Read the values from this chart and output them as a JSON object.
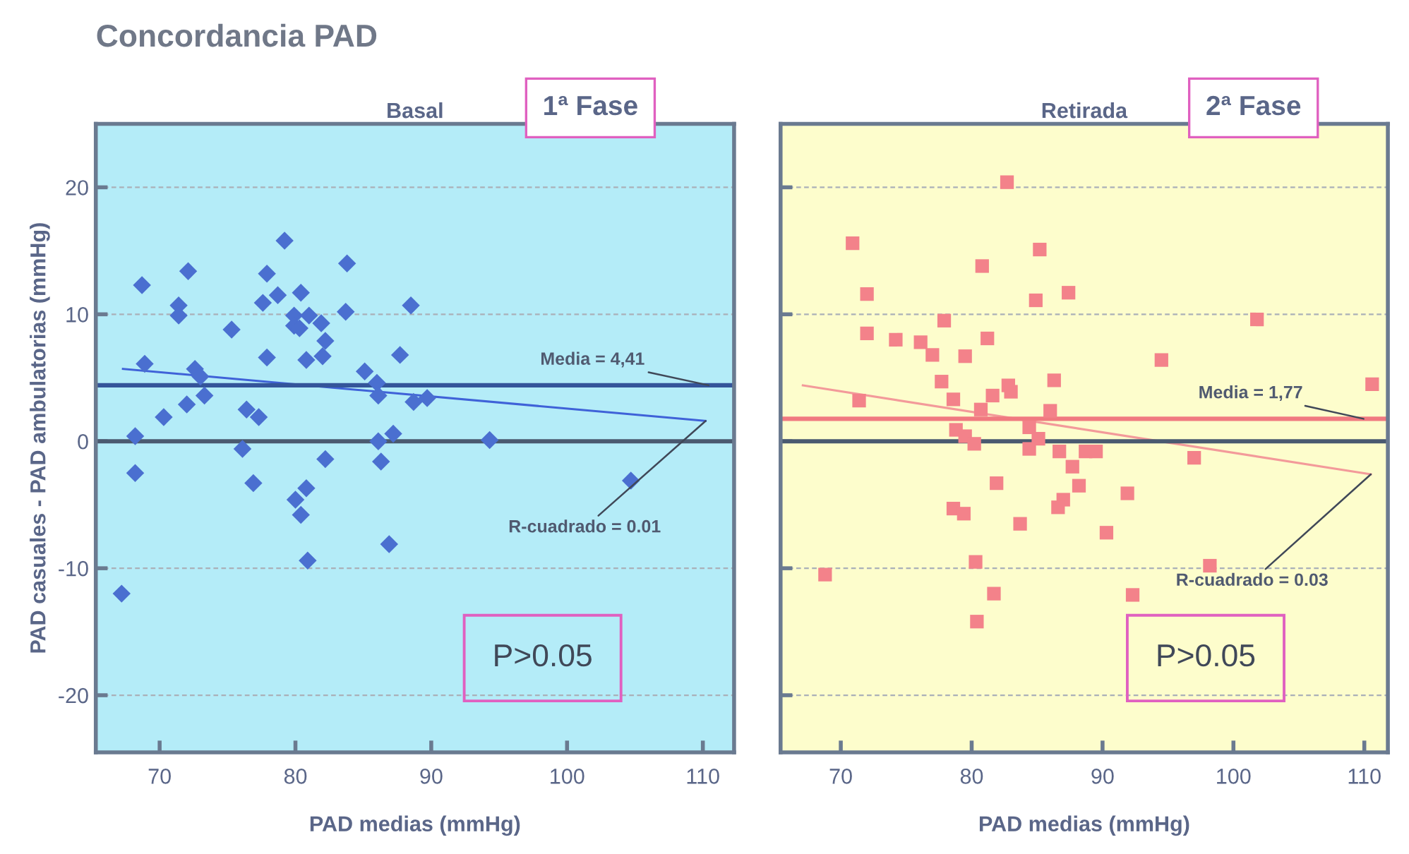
{
  "chart_data": [
    {
      "type": "scatter",
      "title": "Basal",
      "subtitle": "1ª Fase",
      "xlabel": "PAD medias (mmHg)",
      "ylabel": "PAD casuales - PAD ambulatorias (mmHg)",
      "marker": "diamond",
      "grid": "y",
      "legend": false,
      "xlim": [
        65.3,
        112.3
      ],
      "ylim": [
        -24.5,
        25
      ],
      "xticks": [
        70,
        80,
        90,
        100,
        110
      ],
      "yticks": [
        -20,
        -10,
        0,
        10,
        20
      ],
      "series": [
        {
          "color": "#4a6fd0",
          "x": [
            79.2,
            83.8,
            72.1,
            77.9,
            68.7,
            78.7,
            80.4,
            77.6,
            71.4,
            88.5,
            71.4,
            83.7,
            79.9,
            81.0,
            81.9,
            79.9,
            80.3,
            82.2,
            75.3,
            77.9,
            80.8,
            82.0,
            87.7,
            68.9,
            72.6,
            73.0,
            85.1,
            86.0,
            86.1,
            73.3,
            72.0,
            88.7,
            89.7,
            70.3,
            76.4,
            77.3,
            68.2,
            87.2,
            86.1,
            94.3,
            76.1,
            82.2,
            86.3,
            68.2,
            76.9,
            80.8,
            80.0,
            80.4,
            86.9,
            80.9,
            104.7,
            67.2
          ],
          "values": [
            15.8,
            14.0,
            13.4,
            13.2,
            12.3,
            11.5,
            11.7,
            10.9,
            10.7,
            10.7,
            9.9,
            10.2,
            9.9,
            9.9,
            9.3,
            9.1,
            8.9,
            7.9,
            8.8,
            6.6,
            6.4,
            6.7,
            6.8,
            6.1,
            5.7,
            5.1,
            5.5,
            4.6,
            3.6,
            3.6,
            2.9,
            3.1,
            3.4,
            1.9,
            2.5,
            1.9,
            0.4,
            0.6,
            0.0,
            0.1,
            -0.6,
            -1.4,
            -1.6,
            -2.5,
            -3.3,
            -3.7,
            -4.6,
            -5.8,
            -8.1,
            -9.4,
            -3.1,
            -12.0
          ]
        },
        {
          "type": "line",
          "marker": "none",
          "color": "#3f62d8",
          "x": [
            67.3,
            110.2
          ],
          "values": [
            5.7,
            1.6
          ]
        }
      ],
      "ref_lines": [
        {
          "axis": "y",
          "value": 0,
          "color": "#4a5a70"
        },
        {
          "axis": "y",
          "value": 4.41,
          "color": "#34559a",
          "label": "Media = 4,41"
        }
      ],
      "annotations": [
        "Concordancia PAD",
        "P>0.05",
        {
          "text": "R-cuadrado = 0.01",
          "x": 110.2,
          "y": 1.6
        }
      ]
    },
    {
      "type": "scatter",
      "title": "Retirada",
      "subtitle": "2ª Fase",
      "xlabel": "PAD medias (mmHg)",
      "marker": "square",
      "grid": "y",
      "legend": false,
      "tick_labels": "x",
      "xlim": [
        65.4,
        111.8
      ],
      "ylim": [
        -24.5,
        25
      ],
      "xticks": [
        70,
        80,
        90,
        100,
        110
      ],
      "yticks": [
        -20,
        -10,
        0,
        10,
        20
      ],
      "series": [
        {
          "color": "#f3828a",
          "x": [
            82.7,
            70.9,
            85.2,
            80.8,
            72.0,
            87.4,
            84.9,
            77.9,
            101.8,
            72.0,
            74.2,
            76.1,
            81.2,
            77.0,
            79.5,
            94.5,
            77.7,
            86.3,
            82.8,
            83.0,
            81.6,
            71.4,
            78.6,
            110.6,
            80.7,
            86.0,
            84.4,
            78.8,
            79.5,
            85.1,
            80.2,
            84.4,
            86.7,
            88.7,
            89.5,
            97.0,
            87.7,
            88.2,
            81.9,
            91.9,
            87.0,
            86.6,
            78.6,
            79.4,
            83.7,
            90.3,
            80.3,
            98.2,
            68.8,
            81.7,
            92.3,
            80.4
          ],
          "values": [
            20.4,
            15.6,
            15.1,
            13.8,
            11.6,
            11.7,
            11.1,
            9.5,
            9.6,
            8.5,
            8.0,
            7.8,
            8.1,
            6.8,
            6.7,
            6.4,
            4.7,
            4.8,
            4.4,
            3.9,
            3.6,
            3.2,
            3.3,
            4.5,
            2.5,
            2.4,
            1.1,
            0.9,
            0.4,
            0.2,
            -0.2,
            -0.6,
            -0.8,
            -0.8,
            -0.8,
            -1.3,
            -2.0,
            -3.5,
            -3.3,
            -4.1,
            -4.6,
            -5.2,
            -5.3,
            -5.7,
            -6.5,
            -7.2,
            -9.5,
            -9.8,
            -10.5,
            -12.0,
            -12.1,
            -14.2
          ]
        },
        {
          "type": "line",
          "marker": "none",
          "color": "#f39a9a",
          "x": [
            67.1,
            110.5
          ],
          "values": [
            4.4,
            -2.6
          ]
        }
      ],
      "ref_lines": [
        {
          "axis": "y",
          "value": 0,
          "color": "#4a5a70"
        },
        {
          "axis": "y",
          "value": 1.77,
          "color": "#f07a80",
          "label": "Media = 1,77"
        }
      ],
      "annotations": [
        "P>0.05",
        {
          "text": "R-cuadrado = 0.03",
          "x": 110.5,
          "y": -2.6
        }
      ]
    }
  ]
}
